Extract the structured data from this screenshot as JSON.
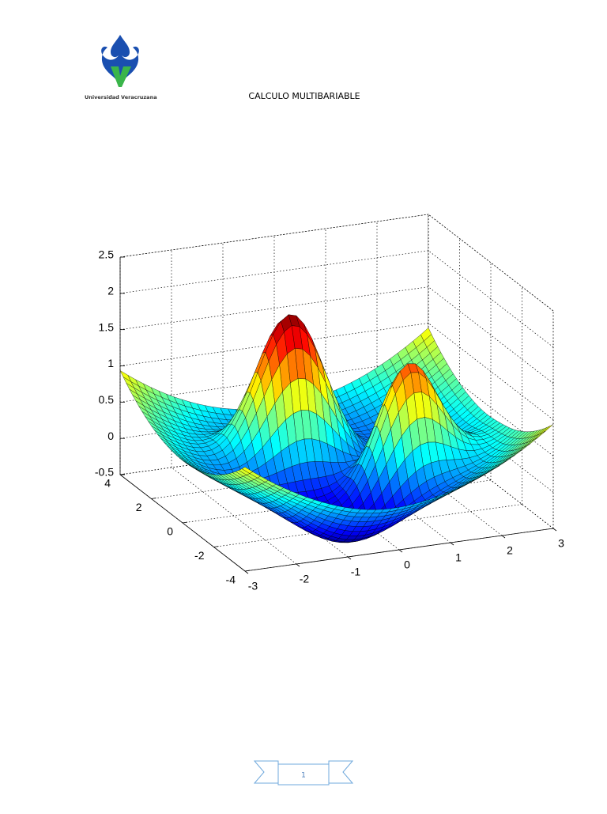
{
  "header": {
    "logo_text": "Universidad Veracruzana",
    "title": "CALCULO MULTIBARIABLE"
  },
  "chart_data": {
    "type": "surface",
    "colormap": "jet",
    "grid": true,
    "xlim": [
      -3,
      3
    ],
    "ylim": [
      -4,
      4
    ],
    "zlim": [
      -0.5,
      2.5
    ],
    "xticks": [
      -3,
      -2,
      -1,
      0,
      1,
      2,
      3
    ],
    "yticks": [
      -4,
      -2,
      0,
      2,
      4
    ],
    "zticks": [
      -0.5,
      0,
      0.5,
      1,
      1.5,
      2,
      2.5
    ]
  },
  "footer": {
    "page_number": "1"
  }
}
